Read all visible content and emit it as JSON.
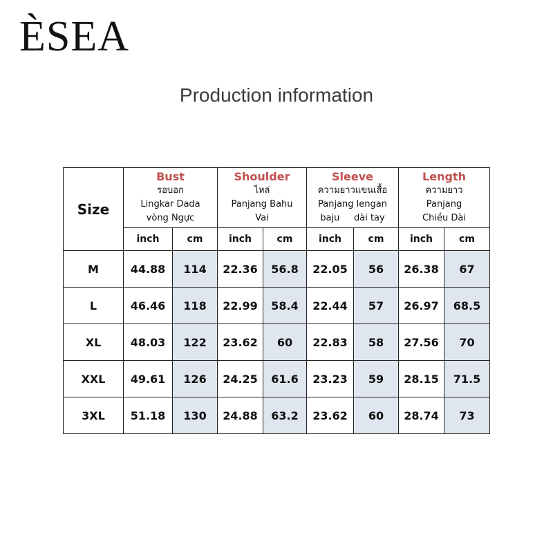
{
  "brand": "ÈSEA",
  "title": "Production information",
  "table": {
    "size_header": "Size",
    "groups": [
      {
        "name": "Bust",
        "lines": [
          "รอบอก",
          "Lingkar Dada",
          "vòng Ngực"
        ]
      },
      {
        "name": "Shoulder",
        "lines": [
          "ไหล่",
          "Panjang Bahu",
          "Vai"
        ]
      },
      {
        "name": "Sleeve",
        "lines": [
          "ความยาวแขนเสื้อ",
          "Panjang lengan",
          "baju     dài tay"
        ]
      },
      {
        "name": "Length",
        "lines": [
          "ความยาว",
          "Panjang",
          "Chiều Dài"
        ]
      }
    ],
    "units": [
      "inch",
      "cm"
    ],
    "rows": [
      [
        "M",
        44.88,
        114,
        22.36,
        56.8,
        22.05,
        56,
        26.38,
        67
      ],
      [
        "L",
        46.46,
        118,
        22.99,
        58.4,
        22.44,
        57,
        26.97,
        68.5
      ],
      [
        "XL",
        48.03,
        122,
        23.62,
        60,
        22.83,
        58,
        27.56,
        70
      ],
      [
        "XXL",
        49.61,
        126,
        24.25,
        61.6,
        23.23,
        59,
        28.15,
        71.5
      ],
      [
        "3XL",
        51.18,
        130,
        24.88,
        63.2,
        23.62,
        60,
        28.74,
        73
      ]
    ]
  }
}
